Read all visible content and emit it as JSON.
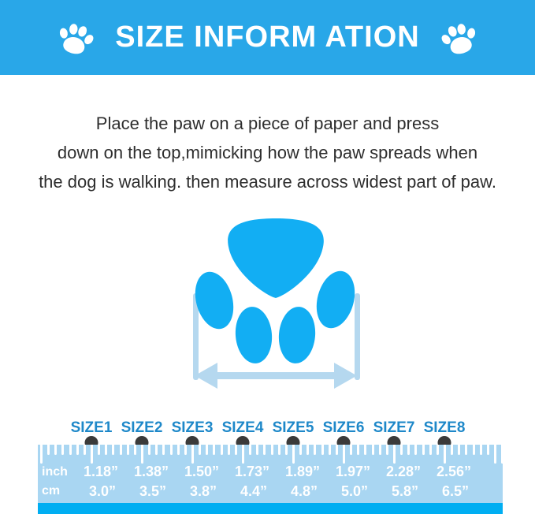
{
  "header": {
    "title": "SIZE INFORM ATION",
    "icon": "paw-print-icon",
    "banner_color": "#29A7E8",
    "title_color": "#FFFFFF"
  },
  "instructions": {
    "lines": [
      "Place the paw on a piece of paper and press",
      "down on the top,mimicking how the paw spreads when",
      "the dog is walking. then measure across widest part of paw."
    ]
  },
  "diagram": {
    "description": "dog paw print with double-headed arrow marking widest part of paw",
    "paw_color": "#12AEF3",
    "guide_color": "#B5D8EF"
  },
  "ruler": {
    "row_labels": {
      "inch": "inch",
      "cm": "cm"
    },
    "colors": {
      "background": "#A9D6F2",
      "band": "#00AEF2",
      "size_label": "#1E88C9",
      "dot": "#3A3A3A",
      "tick": "#FFFFFF"
    },
    "sizes": [
      {
        "label": "SIZE1",
        "inch": "1.18”",
        "cm": "3.0”"
      },
      {
        "label": "SIZE2",
        "inch": "1.38”",
        "cm": "3.5”"
      },
      {
        "label": "SIZE3",
        "inch": "1.50”",
        "cm": "3.8”"
      },
      {
        "label": "SIZE4",
        "inch": "1.73”",
        "cm": "4.4”"
      },
      {
        "label": "SIZE5",
        "inch": "1.89”",
        "cm": "4.8”"
      },
      {
        "label": "SIZE6",
        "inch": "1.97”",
        "cm": "5.0”"
      },
      {
        "label": "SIZE7",
        "inch": "2.28”",
        "cm": "5.8”"
      },
      {
        "label": "SIZE8",
        "inch": "2.56”",
        "cm": "6.5”"
      }
    ]
  }
}
